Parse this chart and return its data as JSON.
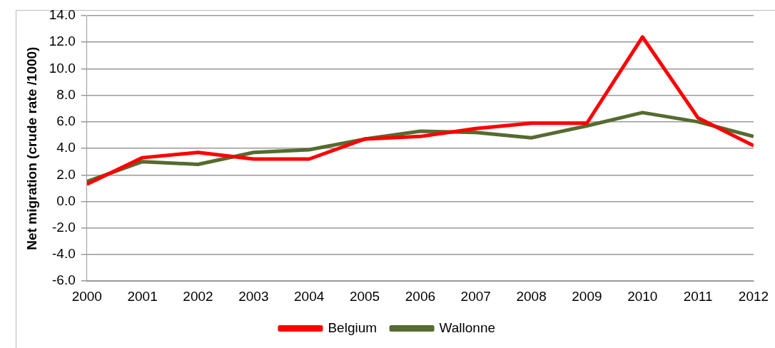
{
  "chart_data": {
    "type": "line",
    "ylabel": "Net migration (crude rate /1000)",
    "x": [
      2000,
      2001,
      2002,
      2003,
      2004,
      2005,
      2006,
      2007,
      2008,
      2009,
      2010,
      2011,
      2012
    ],
    "series": [
      {
        "name": "Belgium",
        "color": "#ff0000",
        "values": [
          1.3,
          3.3,
          3.7,
          3.2,
          3.2,
          4.7,
          4.9,
          5.5,
          5.9,
          5.9,
          12.4,
          6.3,
          4.2
        ]
      },
      {
        "name": "Wallonne",
        "color": "#556b2f",
        "values": [
          1.5,
          3.0,
          2.8,
          3.7,
          3.9,
          4.7,
          5.3,
          5.2,
          4.8,
          5.7,
          6.7,
          6.0,
          4.9
        ]
      }
    ],
    "xlim": [
      2000,
      2012
    ],
    "xticks": [
      2000,
      2001,
      2002,
      2003,
      2004,
      2005,
      2006,
      2007,
      2008,
      2009,
      2010,
      2011,
      2012
    ],
    "ylim": [
      -6,
      14
    ],
    "yticks": [
      {
        "value": -6,
        "label": "-6.0"
      },
      {
        "value": -4,
        "label": "-4.0"
      },
      {
        "value": -2,
        "label": "-2.0"
      },
      {
        "value": 0,
        "label": "0.0"
      },
      {
        "value": 2,
        "label": "2.0"
      },
      {
        "value": 4,
        "label": "4.0"
      },
      {
        "value": 6,
        "label": "6.0"
      },
      {
        "value": 8,
        "label": "8.0"
      },
      {
        "value": 10,
        "label": "10.0"
      },
      {
        "value": 12,
        "label": "12.0"
      },
      {
        "value": 14,
        "label": "14.0"
      }
    ],
    "grid": "y",
    "legend": "bottom",
    "marker": "none",
    "line_style": "solid"
  }
}
